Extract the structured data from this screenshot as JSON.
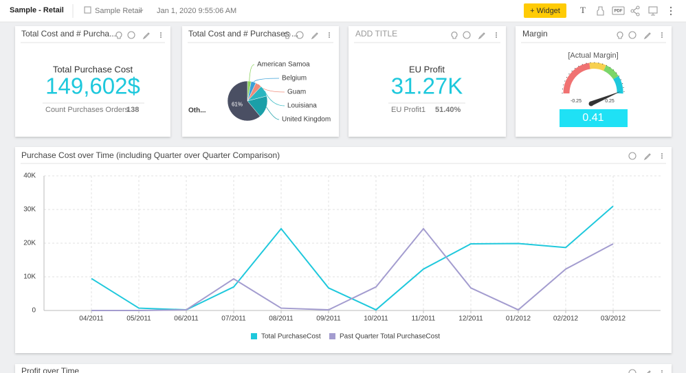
{
  "header": {
    "title": "Sample - Retail",
    "dashboard": "Sample Retail",
    "date": "Jan 1, 2020 9:55:06 AM",
    "widget_button": "+ Widget",
    "icons": [
      "T",
      "PDF"
    ]
  },
  "widgets": [
    {
      "title": "Total Cost and # Purcha...",
      "label": "Total Purchase Cost",
      "value": "149,602$",
      "secondary_label": "Count Purchases Orders",
      "secondary_value": 138
    },
    {
      "title": "ADD TITLE",
      "label": "EU Profit",
      "value": "31.27K",
      "secondary_label": "EU Profit1",
      "secondary_value": "51.40%"
    },
    {
      "title": "Margin",
      "gauge_label": "[Actual Margin]",
      "min": -0.25,
      "max": 0.25,
      "value": 0.41
    }
  ],
  "chart_data": [
    {
      "type": "pie",
      "title": "Total Cost and # Purchases ...",
      "categories": [
        "American Samoa",
        "Belgium",
        "Guam",
        "Louisiana",
        "United Kingdom",
        "Oth..."
      ],
      "values": [
        3,
        4,
        5,
        9,
        18,
        61
      ],
      "value_labels": [
        null,
        null,
        null,
        null,
        null,
        "61%"
      ],
      "colors": [
        "#8bd15b",
        "#3aa0d8",
        "#f08c7a",
        "#2bb6c0",
        "#1b9fa8",
        "#4a4f63"
      ]
    },
    {
      "type": "line",
      "title": "Purchase Cost over Time (including Quarter over Quarter Comparison)",
      "categories": [
        "04/2011",
        "05/2011",
        "06/2011",
        "07/2011",
        "08/2011",
        "09/2011",
        "10/2011",
        "11/2011",
        "12/2011",
        "01/2012",
        "02/2012",
        "03/2012"
      ],
      "series": [
        {
          "name": "Total PurchaseCost",
          "color": "#1ec8dc",
          "values": [
            9500,
            700,
            200,
            7000,
            24300,
            6700,
            200,
            12300,
            19800,
            19900,
            18700,
            31000
          ]
        },
        {
          "name": "Past Quarter Total PurchaseCost",
          "color": "#a39ccf",
          "values": [
            0,
            0,
            200,
            9400,
            700,
            200,
            7000,
            24300,
            6700,
            200,
            12300,
            19800
          ]
        }
      ],
      "ylim": [
        0,
        40000
      ],
      "yticks": [
        0,
        {
          "value": 10000,
          "label": "10K"
        },
        {
          "value": 20000,
          "label": "20K"
        },
        {
          "value": 30000,
          "label": "30K"
        },
        {
          "value": 40000,
          "label": "40K"
        }
      ],
      "grid": true,
      "legend": "bottom"
    }
  ],
  "bottom_widget": {
    "title": "Profit over Time"
  }
}
